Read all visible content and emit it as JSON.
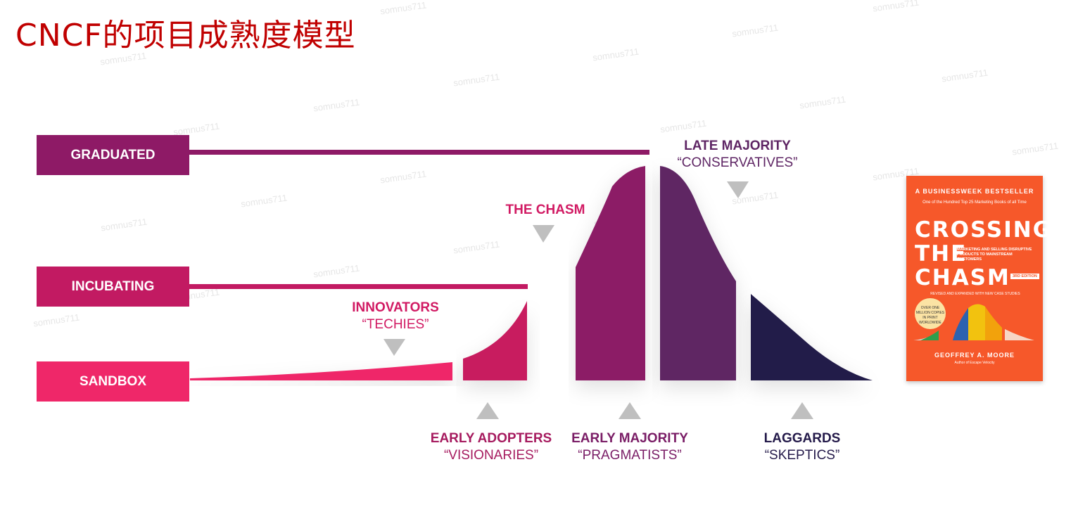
{
  "title": "CNCF的项目成熟度模型",
  "colors": {
    "title": "#c00000",
    "graduated": "#8e1a66",
    "incubating": "#c21a62",
    "sandbox": "#ef2769",
    "innovators_fill": "#c81c5f",
    "early_majority_fill": "#8c1e66",
    "late_majority_fill": "#5e2564",
    "laggards_fill": "#241a4a",
    "book_bg": "#f6582a"
  },
  "tiers": [
    {
      "label": "GRADUATED"
    },
    {
      "label": "INCUBATING"
    },
    {
      "label": "SANDBOX"
    }
  ],
  "labels": {
    "late_majority": {
      "heading": "LATE MAJORITY",
      "sub": "“CONSERVATIVES”"
    },
    "chasm": {
      "heading": "THE CHASM"
    },
    "innovators": {
      "heading": "INNOVATORS",
      "sub": "“TECHIES”"
    },
    "early_adopters": {
      "heading": "EARLY ADOPTERS",
      "sub": "“VISIONARIES”"
    },
    "early_majority": {
      "heading": "EARLY MAJORITY",
      "sub": "“PRAGMATISTS”"
    },
    "laggards": {
      "heading": "LAGGARDS",
      "sub": "“SKEPTICS”"
    }
  },
  "book": {
    "top": "A BUSINESSWEEK BESTSELLER",
    "quote": "One of the Hundred Top 25 Marketing Books of all Time",
    "line1": "CROSSING",
    "line2": "THE",
    "line3": "CHASM",
    "subtitle": "MARKETING AND SELLING DISRUPTIVE PRODUCTS TO MAINSTREAM CUSTOMERS",
    "edition": "3RD EDITION",
    "tagline": "REVISED AND EXPANDED WITH NEW CASE STUDIES",
    "badge": "OVER ONE MILLION COPIES IN PRINT WORLDWIDE",
    "author": "GEOFFREY A. MOORE",
    "preface": "Author of Escape Velocity"
  },
  "watermark": "somnus711"
}
